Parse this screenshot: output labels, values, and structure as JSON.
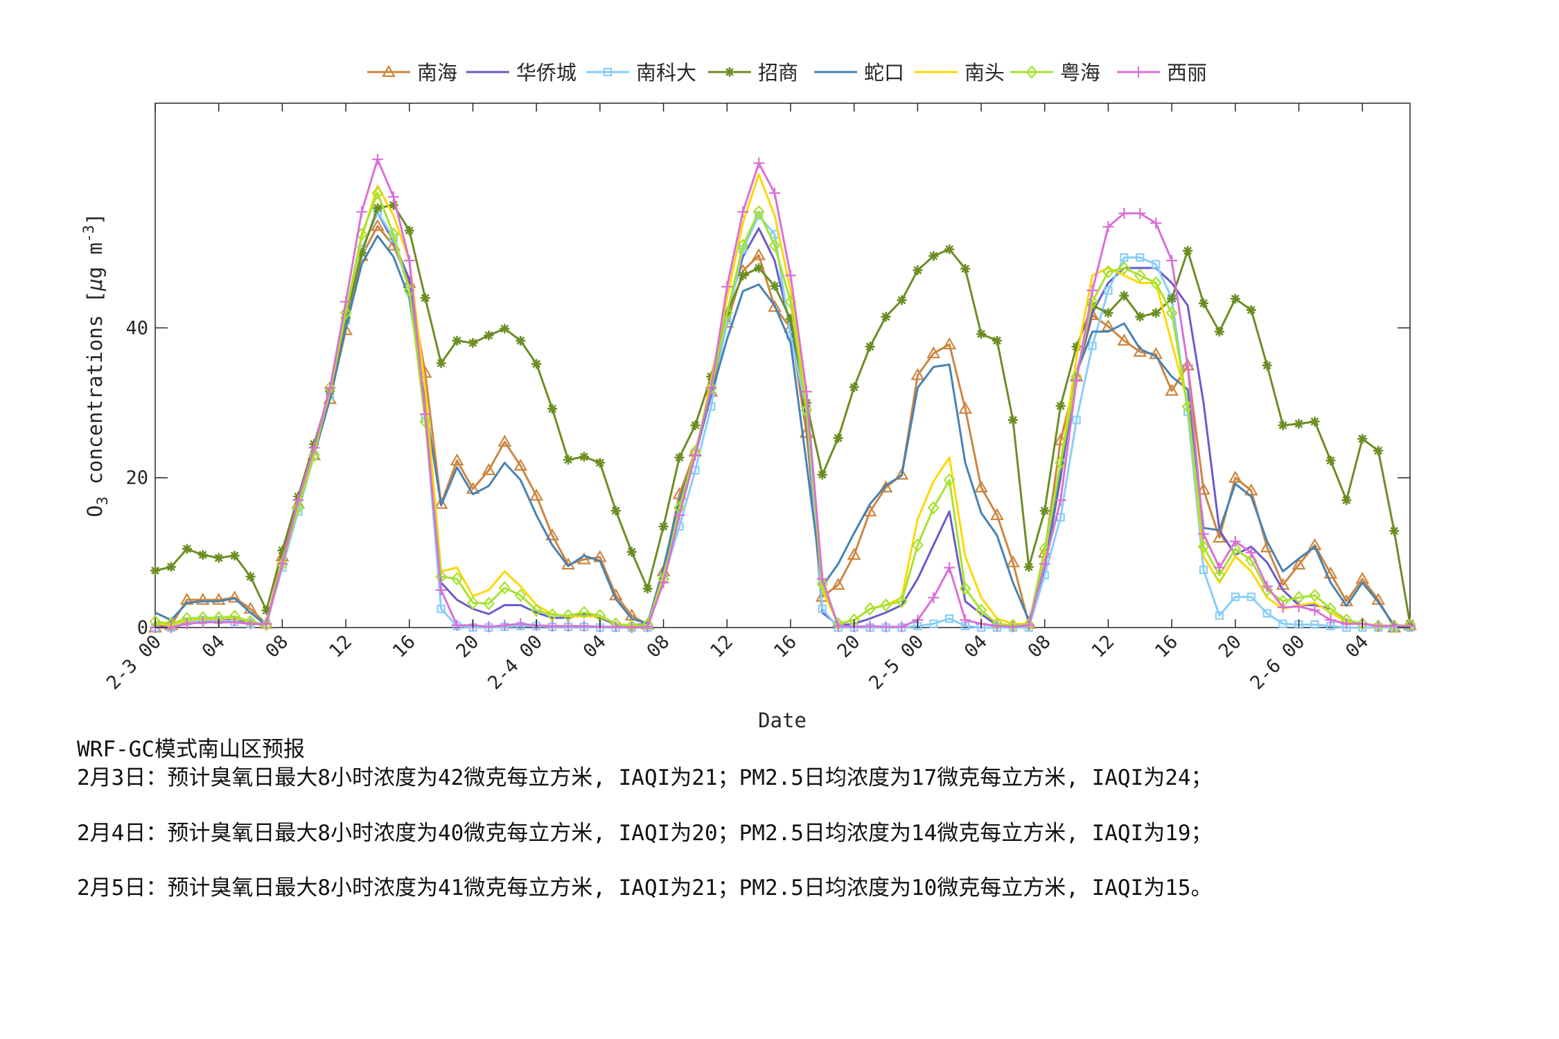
{
  "chart_data": {
    "type": "line",
    "xlabel": "Date",
    "ylabel": "O3 concentrations [μg m-3]",
    "ylabel_parts": {
      "o": "O",
      "sub": "3",
      "mid": " concentrations [",
      "mu": "μ",
      "g": "g m",
      "sup": "-3",
      "end": "]"
    },
    "xlim": [
      "2-3 00",
      "2-6 07"
    ],
    "ylim": [
      0,
      70
    ],
    "y_ticks": [
      0,
      20,
      40
    ],
    "y_tick_labels": [
      "0",
      "20",
      "40"
    ],
    "x_tick_labels": [
      "2-3 00",
      "04",
      "08",
      "12",
      "16",
      "20",
      "2-4 00",
      "04",
      "08",
      "12",
      "16",
      "20",
      "2-5 00",
      "04",
      "08",
      "12",
      "16",
      "20",
      "2-6 00",
      "04"
    ],
    "grid": false,
    "legend_position": "top (horizontal)",
    "x": [
      "2-3 00",
      "2-3 01",
      "2-3 02",
      "2-3 03",
      "2-3 04",
      "2-3 05",
      "2-3 06",
      "2-3 07",
      "2-3 08",
      "2-3 09",
      "2-3 10",
      "2-3 11",
      "2-3 12",
      "2-3 13",
      "2-3 14",
      "2-3 15",
      "2-3 16",
      "2-3 17",
      "2-3 18",
      "2-3 19",
      "2-3 20",
      "2-3 21",
      "2-3 22",
      "2-3 23",
      "2-4 00",
      "2-4 01",
      "2-4 02",
      "2-4 03",
      "2-4 04",
      "2-4 05",
      "2-4 06",
      "2-4 07",
      "2-4 08",
      "2-4 09",
      "2-4 10",
      "2-4 11",
      "2-4 12",
      "2-4 13",
      "2-4 14",
      "2-4 15",
      "2-4 16",
      "2-4 17",
      "2-4 18",
      "2-4 19",
      "2-4 20",
      "2-4 21",
      "2-4 22",
      "2-4 23",
      "2-5 00",
      "2-5 01",
      "2-5 02",
      "2-5 03",
      "2-5 04",
      "2-5 05",
      "2-5 06",
      "2-5 07",
      "2-5 08",
      "2-5 09",
      "2-5 10",
      "2-5 11",
      "2-5 12",
      "2-5 13",
      "2-5 14",
      "2-5 15",
      "2-5 16",
      "2-5 17",
      "2-5 18",
      "2-5 19",
      "2-5 20",
      "2-5 21",
      "2-5 22",
      "2-5 23",
      "2-6 00",
      "2-6 01",
      "2-6 02",
      "2-6 03",
      "2-6 04",
      "2-6 05",
      "2-6 06",
      "2-6 07"
    ],
    "series": [
      {
        "name": "南海",
        "color": "#cd853f",
        "marker": "triangle",
        "values": [
          0,
          0.3,
          3.7,
          3.7,
          3.7,
          4,
          2.5,
          0.5,
          9.5,
          16.5,
          23,
          30.5,
          39.7,
          49.6,
          53.6,
          51,
          46,
          34,
          16.5,
          22.3,
          18.5,
          21,
          24.8,
          21.6,
          17.6,
          12.3,
          8.4,
          9.1,
          9.4,
          4.3,
          1.6,
          0.4,
          7.5,
          17.8,
          23.5,
          31.5,
          40.7,
          47.6,
          49.7,
          42.8,
          40,
          26,
          4.1,
          5.7,
          9.7,
          15.5,
          18.7,
          20.4,
          33.7,
          36.6,
          37.8,
          29.2,
          18.7,
          15,
          8.7,
          0.5,
          10,
          25,
          33.5,
          41.7,
          40.2,
          38.3,
          36.8,
          36.5,
          31.6,
          35,
          18.4,
          12,
          20,
          18.3,
          10.7,
          5.7,
          8.4,
          11,
          7.2,
          3.5,
          6.5,
          3.7,
          0,
          0.3
        ]
      },
      {
        "name": "华侨城",
        "color": "#6a5acd",
        "marker": "none",
        "values": [
          0.3,
          0.3,
          1,
          1,
          1,
          1.2,
          0.6,
          0.3,
          9,
          16.5,
          23.5,
          31.5,
          41,
          50.5,
          55.4,
          51.5,
          46.5,
          29,
          6,
          3.7,
          2.5,
          1.8,
          3,
          3,
          2,
          1.3,
          1.3,
          1.8,
          1.3,
          0.4,
          0.3,
          0.5,
          7,
          16,
          23,
          32,
          42,
          49.5,
          53.3,
          49,
          40,
          28,
          2,
          0.3,
          0.5,
          1.2,
          2,
          3,
          6.5,
          11,
          15.5,
          3.5,
          1.8,
          0.3,
          0.2,
          0.3,
          8,
          20,
          34,
          42,
          46,
          48,
          48,
          48,
          46,
          43,
          30,
          13,
          9.7,
          10.8,
          8.7,
          5,
          3,
          3,
          2.5,
          1,
          0.5,
          0.3,
          0.2,
          0.2
        ]
      },
      {
        "name": "南科大",
        "color": "#87cefa",
        "marker": "square",
        "values": [
          0,
          0,
          0.8,
          1,
          1,
          0.8,
          0.5,
          0.5,
          8,
          15.5,
          23,
          31,
          41,
          50.5,
          55.5,
          52,
          45,
          28,
          2.5,
          0.2,
          0,
          0,
          0.1,
          0.2,
          0.2,
          0.1,
          0.1,
          0.1,
          0,
          0,
          0,
          0,
          6.5,
          13.5,
          21,
          29.5,
          41,
          50.5,
          55,
          52.5,
          39,
          29,
          2.5,
          0,
          0,
          0,
          0,
          0,
          0.2,
          0.5,
          1.2,
          0.2,
          0,
          0,
          0,
          0,
          7,
          14.7,
          27.7,
          37.6,
          45,
          49.4,
          49.4,
          48.5,
          44,
          28.8,
          7.7,
          1.6,
          4.1,
          4.1,
          1.9,
          0.5,
          0.4,
          0.4,
          0.2,
          0,
          0,
          0,
          0,
          0
        ]
      },
      {
        "name": "招商",
        "color": "#6b8e23",
        "marker": "asterisk",
        "values": [
          7.6,
          8.1,
          10.5,
          9.7,
          9.3,
          9.6,
          6.8,
          2.3,
          10.3,
          17.5,
          24.5,
          31.6,
          41.3,
          50,
          56,
          56.4,
          53,
          44,
          35.3,
          38.3,
          38,
          39,
          39.9,
          38.3,
          35.2,
          29.2,
          22.4,
          22.8,
          22,
          15.6,
          10.1,
          5.2,
          13.5,
          22.7,
          27,
          33.5,
          42,
          47,
          48,
          45.6,
          41.2,
          30,
          20.4,
          25.3,
          32.1,
          37.5,
          41.5,
          43.7,
          47.7,
          49.6,
          50.5,
          47.9,
          39.2,
          38.3,
          27.7,
          8.1,
          15.6,
          29.6,
          37.5,
          43,
          42,
          44.3,
          41.5,
          42,
          43.9,
          50.3,
          43.3,
          39.5,
          43.9,
          42.4,
          35,
          27,
          27.2,
          27.5,
          22.3,
          17,
          25.2,
          23.6,
          12.9,
          0.5
        ]
      },
      {
        "name": "蛇口",
        "color": "#4682b4",
        "marker": "none",
        "values": [
          2,
          1,
          3.3,
          3.5,
          3.5,
          3.9,
          2,
          0.3,
          9,
          16,
          23,
          30.5,
          40,
          48.5,
          52.3,
          49.5,
          44,
          30,
          16.3,
          21.4,
          17.8,
          18.9,
          22,
          19.7,
          15,
          11,
          8.2,
          9.6,
          8.9,
          3.8,
          1.2,
          0.5,
          8,
          17,
          23,
          31,
          38.5,
          44.9,
          45.8,
          43,
          38,
          22,
          5.5,
          8.5,
          12.6,
          16.5,
          19,
          20.3,
          32,
          34.8,
          35.1,
          22,
          15.3,
          12.3,
          6,
          1,
          8,
          21,
          34,
          39.5,
          39.5,
          40.6,
          37.2,
          36.2,
          33.5,
          31.8,
          13.3,
          13,
          19.2,
          17.5,
          11.5,
          7.5,
          9.2,
          10.8,
          6,
          2.9,
          6,
          3.4,
          0.3,
          0.2
        ]
      },
      {
        "name": "南头",
        "color": "#ffd700",
        "marker": "none",
        "values": [
          0.5,
          0.3,
          1,
          1.2,
          1.2,
          1.3,
          0.8,
          0.3,
          9,
          16,
          23.5,
          31.5,
          42,
          52,
          59,
          55,
          49,
          32,
          7.5,
          8,
          4.2,
          5,
          7.5,
          5.5,
          3,
          1.8,
          1.5,
          1.5,
          1.5,
          0.5,
          0.3,
          0.3,
          7,
          15,
          23,
          33,
          44,
          54,
          60.5,
          55,
          45,
          30,
          5,
          0.5,
          1,
          2.5,
          3,
          4,
          14.5,
          19.5,
          22.7,
          9.5,
          4,
          1.2,
          0.5,
          0.5,
          10,
          22,
          36,
          47,
          48,
          47,
          46,
          46,
          38,
          30,
          9.5,
          6,
          9.5,
          7.5,
          4,
          2.5,
          3,
          3.3,
          2,
          0.8,
          0.5,
          0.3,
          0.2,
          0.3
        ]
      },
      {
        "name": "粤海",
        "color": "#a6e22e",
        "marker": "diamond",
        "values": [
          0.8,
          0.5,
          1.2,
          1.3,
          1.3,
          1.5,
          0.8,
          0.4,
          8.5,
          16,
          23,
          32,
          42,
          52.5,
          58,
          52.5,
          45,
          27.5,
          6.8,
          6.5,
          3.3,
          3.2,
          5.3,
          4.3,
          2.3,
          1.7,
          1.6,
          2,
          1.6,
          0.5,
          0.2,
          0.4,
          6.5,
          16,
          23.5,
          32,
          42,
          51,
          55.5,
          51,
          43.5,
          29,
          5.8,
          0.5,
          1,
          2.5,
          3,
          3.5,
          11,
          16,
          19.7,
          5.2,
          2.3,
          0.5,
          0.3,
          0.4,
          10.5,
          22,
          33.5,
          43.5,
          47.5,
          48,
          47,
          46,
          42,
          29.5,
          10.8,
          7,
          10.5,
          9,
          5,
          3.5,
          4,
          4.3,
          2.5,
          1,
          0.5,
          0.2,
          0.2,
          0.3
        ]
      },
      {
        "name": "西丽",
        "color": "#da70d6",
        "marker": "plus",
        "values": [
          0,
          0,
          0.5,
          0.7,
          0.7,
          0.7,
          0.5,
          0.5,
          8.5,
          17,
          24,
          32,
          43.5,
          55.5,
          62.5,
          57.5,
          49,
          28.5,
          5,
          0.3,
          0.3,
          0.1,
          0.3,
          0.5,
          0.3,
          0.2,
          0.2,
          0.2,
          0.1,
          0.1,
          0,
          0.1,
          6,
          15,
          23,
          32,
          45.5,
          55.5,
          62,
          58,
          47,
          31.5,
          6.5,
          0.2,
          0.1,
          0.2,
          0.1,
          0.1,
          1,
          4,
          8,
          1,
          0.5,
          0.2,
          0.1,
          0.3,
          8.5,
          17,
          33,
          45,
          53.5,
          55.3,
          55.3,
          54,
          49,
          35,
          12.5,
          8,
          11.5,
          10,
          5.5,
          2.7,
          2.8,
          2.3,
          1,
          0.5,
          0.5,
          0.2,
          0.2,
          0.2
        ]
      }
    ]
  },
  "notes": {
    "title": "WRF-GC模式南山区预报",
    "lines": [
      "2月3日：预计臭氧日最大8小时浓度为42微克每立方米, IAQI为21；PM2.5日均浓度为17微克每立方米, IAQI为24；",
      "2月4日：预计臭氧日最大8小时浓度为40微克每立方米, IAQI为20；PM2.5日均浓度为14微克每立方米, IAQI为19；",
      "2月5日：预计臭氧日最大8小时浓度为41微克每立方米, IAQI为21；PM2.5日均浓度为10微克每立方米, IAQI为15。"
    ]
  }
}
